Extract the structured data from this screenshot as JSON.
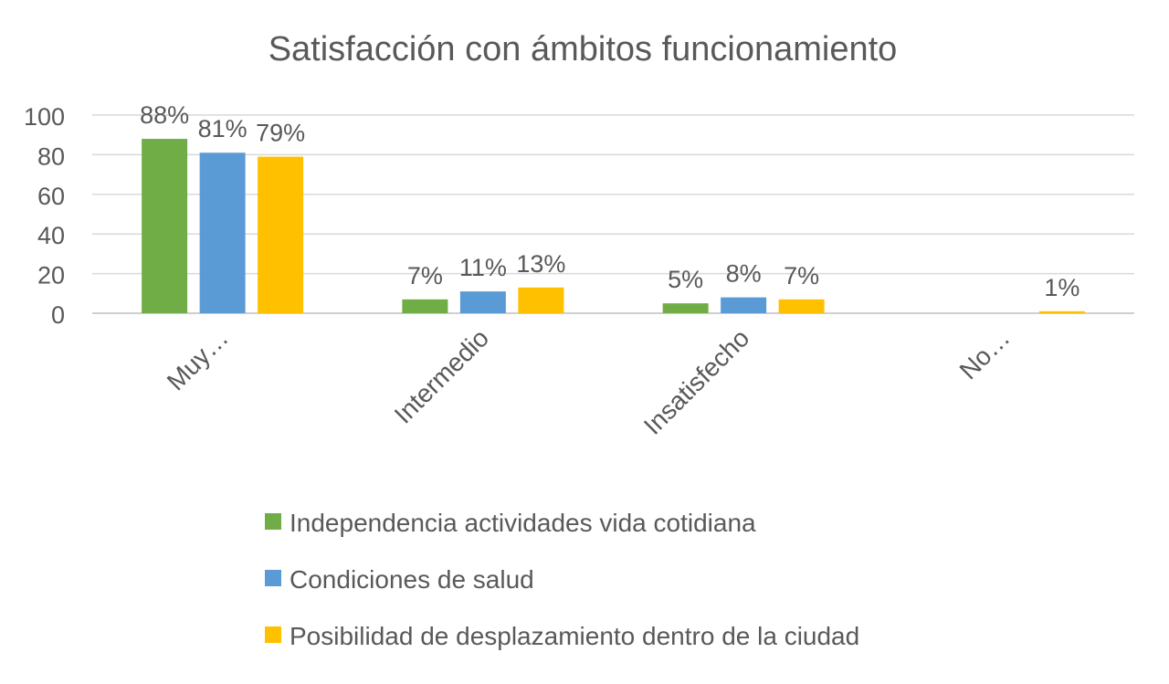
{
  "chart_data": {
    "type": "bar",
    "title": "Satisfacción con ámbitos funcionamiento",
    "xlabel": "",
    "ylabel": "",
    "categories": [
      "Muy…",
      "Intermedio",
      "Insatisfecho",
      "No…"
    ],
    "series": [
      {
        "name": "Independencia actividades vida cotidiana",
        "color": "#70AD47",
        "values": [
          88,
          7,
          5,
          null
        ],
        "labels": [
          "88%",
          "7%",
          "5%",
          ""
        ]
      },
      {
        "name": "Condiciones de salud",
        "color": "#5B9BD5",
        "values": [
          81,
          11,
          8,
          null
        ],
        "labels": [
          "81%",
          "11%",
          "8%",
          ""
        ]
      },
      {
        "name": "Posibilidad de desplazamiento dentro de la ciudad",
        "color": "#FFC000",
        "values": [
          79,
          13,
          7,
          1
        ],
        "labels": [
          "79%",
          "13%",
          "7%",
          "1%"
        ]
      }
    ],
    "ylim": [
      0,
      100
    ],
    "yticks": [
      0,
      20,
      40,
      60,
      80,
      100
    ],
    "grid": true,
    "legend": "bottom"
  }
}
